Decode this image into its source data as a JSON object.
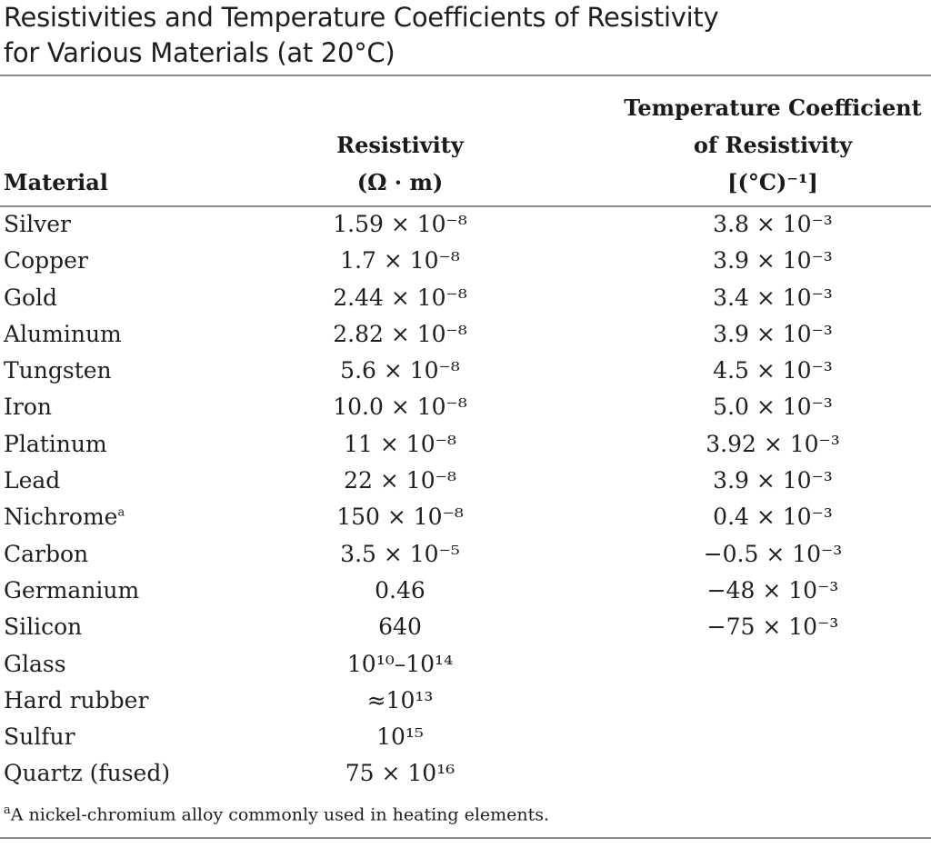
{
  "caption": {
    "line1": "Resistivities and Temperature Coefficients of Resistivity",
    "line2": "for Various Materials (at 20°C)"
  },
  "table": {
    "headers": {
      "material": "Material",
      "resistivity_line1": "Resistivity",
      "resistivity_line2": "(Ω · m)",
      "tc_line1": "Temperature Coefficient",
      "tc_line2": "of Resistivity",
      "tc_line3": "[(°C)⁻¹]"
    },
    "rows": [
      {
        "material": "Silver",
        "resistivity": "1.59 × 10⁻⁸",
        "tc": "3.8 × 10⁻³"
      },
      {
        "material": "Copper",
        "resistivity": "1.7 × 10⁻⁸",
        "tc": "3.9 × 10⁻³"
      },
      {
        "material": "Gold",
        "resistivity": "2.44 × 10⁻⁸",
        "tc": "3.4 × 10⁻³"
      },
      {
        "material": "Aluminum",
        "resistivity": "2.82 × 10⁻⁸",
        "tc": "3.9 × 10⁻³"
      },
      {
        "material": "Tungsten",
        "resistivity": "5.6 × 10⁻⁸",
        "tc": "4.5 × 10⁻³"
      },
      {
        "material": "Iron",
        "resistivity": "10.0 × 10⁻⁸",
        "tc": "5.0 × 10⁻³"
      },
      {
        "material": "Platinum",
        "resistivity": "11 × 10⁻⁸",
        "tc": "3.92 × 10⁻³"
      },
      {
        "material": "Lead",
        "resistivity": "22 × 10⁻⁸",
        "tc": "3.9 × 10⁻³"
      },
      {
        "material": "Nichrome",
        "footnote_mark": "a",
        "resistivity": "150 × 10⁻⁸",
        "tc": "0.4 × 10⁻³"
      },
      {
        "material": "Carbon",
        "resistivity": "3.5 × 10⁻⁵",
        "tc": "−0.5 × 10⁻³"
      },
      {
        "material": "Germanium",
        "resistivity": "0.46",
        "tc": "−48 × 10⁻³"
      },
      {
        "material": "Silicon",
        "resistivity": "640",
        "tc": "−75 × 10⁻³"
      },
      {
        "material": "Glass",
        "resistivity": "10¹⁰–10¹⁴",
        "tc": ""
      },
      {
        "material": "Hard rubber",
        "resistivity": "≈10¹³",
        "tc": ""
      },
      {
        "material": "Sulfur",
        "resistivity": "10¹⁵",
        "tc": ""
      },
      {
        "material": "Quartz (fused)",
        "resistivity": "75 × 10¹⁶",
        "tc": ""
      }
    ],
    "footnote": {
      "mark": "a",
      "text": "A nickel-chromium alloy commonly used in heating elements."
    }
  }
}
